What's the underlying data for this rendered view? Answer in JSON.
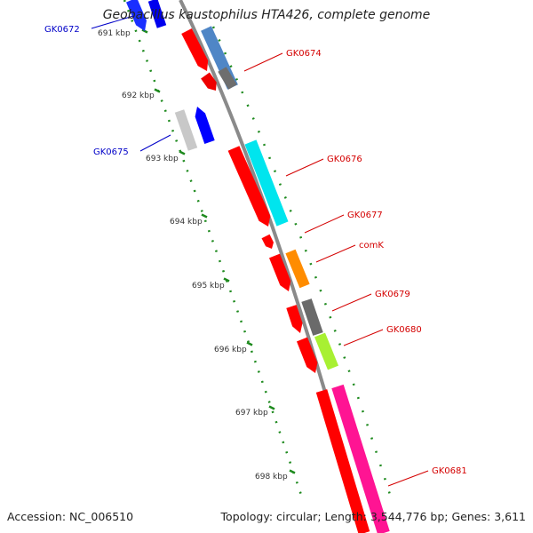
{
  "title": "Geobacillus kaustophilus HTA426, complete genome",
  "footer": {
    "accession_label": "Accession:",
    "accession": "NC_006510",
    "topology_label": "Topology:",
    "topology": "circular",
    "length_label": "Length:",
    "length": "3,544,776 bp",
    "genes_label": "Genes:",
    "genes": "3,611"
  },
  "axis": {
    "ticks": [
      "691 kbp",
      "692 kbp",
      "693 kbp",
      "694 kbp",
      "695 kbp",
      "696 kbp",
      "697 kbp",
      "698 kbp"
    ]
  },
  "colors": {
    "backbone": "#8a8a8a",
    "tick": "#1e8a1e",
    "forward_label": "#d40000",
    "reverse_label": "#0000c8"
  },
  "genes": [
    {
      "name": "GK0672",
      "strand": "reverse",
      "label_color": "#0000c8"
    },
    {
      "name": "GK0674",
      "strand": "forward",
      "label_color": "#d40000"
    },
    {
      "name": "GK0675",
      "strand": "reverse",
      "label_color": "#0000c8"
    },
    {
      "name": "GK0676",
      "strand": "forward",
      "label_color": "#d40000"
    },
    {
      "name": "GK0677",
      "strand": "forward",
      "label_color": "#d40000"
    },
    {
      "name": "comK",
      "strand": "forward",
      "label_color": "#d40000"
    },
    {
      "name": "GK0679",
      "strand": "forward",
      "label_color": "#d40000"
    },
    {
      "name": "GK0680",
      "strand": "forward",
      "label_color": "#d40000"
    },
    {
      "name": "GK0681",
      "strand": "forward",
      "label_color": "#d40000"
    }
  ]
}
